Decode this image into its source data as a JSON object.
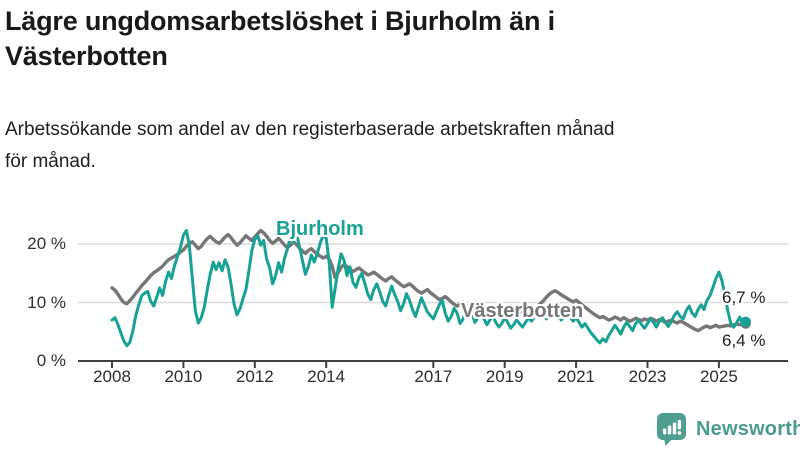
{
  "header": {
    "title_line1": "Lägre ungdomsarbetslöshet i Bjurholm än i",
    "title_line2": "Västerbotten",
    "subtitle_line1": "Arbetssökande som andel av den registerbaserade arbetskraften månad",
    "subtitle_line2": "för månad."
  },
  "chart_data": {
    "type": "line",
    "title": "Lägre ungdomsarbetslöshet i Bjurholm än i Västerbotten",
    "subtitle": "Arbetssökande som andel av den registerbaserade arbetskraften månad för månad.",
    "x_unit": "month",
    "x_start": "2008-01",
    "x_end": "2025-10",
    "ylim": [
      0,
      25
    ],
    "grid": "horizontal",
    "y_ticks": [
      {
        "label": "20 %",
        "value": 20
      },
      {
        "label": "10 %",
        "value": 10
      },
      {
        "label": "0 %",
        "value": 0
      }
    ],
    "x_ticks": [
      {
        "label": "2008",
        "year": 2008
      },
      {
        "label": "2010",
        "year": 2010
      },
      {
        "label": "2012",
        "year": 2012
      },
      {
        "label": "2014",
        "year": 2014
      },
      {
        "label": "2017",
        "year": 2017
      },
      {
        "label": "2019",
        "year": 2019
      },
      {
        "label": "2021",
        "year": 2021
      },
      {
        "label": "2023",
        "year": 2023
      },
      {
        "label": "2025",
        "year": 2025
      }
    ],
    "series": [
      {
        "name": "Bjurholm",
        "color": "#17A295",
        "latest_value_label": "6,7 %",
        "values": [
          7.0,
          7.4,
          6.2,
          4.8,
          3.4,
          2.6,
          3.2,
          5.1,
          7.8,
          9.6,
          11.2,
          11.6,
          11.9,
          10.2,
          9.4,
          10.8,
          12.5,
          11.2,
          13.6,
          15.2,
          14.1,
          16.3,
          17.8,
          19.4,
          21.5,
          22.3,
          19.8,
          14.2,
          8.6,
          6.5,
          7.4,
          9.2,
          12.1,
          14.8,
          16.9,
          15.6,
          16.8,
          15.4,
          17.3,
          16.1,
          13.2,
          9.8,
          7.9,
          8.9,
          10.6,
          12.2,
          15.4,
          18.8,
          20.8,
          21.4,
          19.8,
          20.6,
          17.4,
          15.9,
          13.2,
          14.6,
          16.8,
          15.2,
          17.6,
          19.2,
          21.2,
          20.4,
          21.8,
          19.6,
          17.2,
          14.8,
          16.2,
          18.1,
          16.9,
          18.4,
          20.2,
          21.5,
          21.0,
          16.8,
          9.2,
          12.4,
          15.8,
          18.3,
          17.2,
          14.6,
          16.1,
          13.4,
          12.6,
          14.2,
          15.0,
          13.2,
          11.4,
          10.5,
          12.2,
          13.2,
          11.8,
          10.2,
          9.4,
          11.2,
          12.8,
          11.4,
          10.2,
          8.6,
          9.8,
          11.5,
          10.4,
          8.8,
          7.6,
          9.2,
          10.8,
          9.6,
          8.4,
          7.8,
          7.2,
          8.4,
          9.6,
          10.4,
          8.2,
          6.8,
          7.6,
          9.0,
          8.2,
          6.4,
          7.2,
          8.8,
          9.2,
          8.0,
          6.6,
          7.4,
          8.6,
          7.2,
          6.2,
          7.0,
          7.8,
          6.6,
          5.8,
          6.4,
          7.4,
          6.6,
          5.6,
          6.2,
          7.0,
          6.4,
          5.8,
          6.6,
          7.4,
          6.8,
          7.6,
          8.2,
          8.8,
          8.0,
          7.2,
          8.4,
          9.2,
          8.6,
          7.8,
          7.0,
          7.6,
          8.2,
          7.4,
          6.8,
          7.4,
          6.6,
          5.8,
          6.4,
          5.6,
          4.8,
          4.2,
          3.6,
          3.1,
          3.8,
          3.3,
          4.4,
          5.2,
          6.1,
          5.4,
          4.6,
          5.8,
          6.6,
          5.9,
          5.2,
          6.4,
          7.0,
          6.2,
          5.6,
          6.4,
          7.2,
          6.6,
          5.8,
          6.8,
          7.4,
          6.6,
          5.9,
          6.7,
          7.8,
          8.4,
          7.6,
          7.2,
          8.6,
          9.4,
          8.2,
          7.6,
          8.8,
          9.6,
          8.8,
          10.4,
          11.2,
          12.6,
          14.1,
          15.2,
          13.8,
          11.2,
          8.6,
          6.4,
          5.8,
          6.6,
          7.5,
          6.2,
          6.7
        ]
      },
      {
        "name": "Västerbotten",
        "color": "#767676",
        "latest_value_label": "6,4 %",
        "values": [
          12.5,
          12.1,
          11.4,
          10.6,
          10.0,
          9.8,
          10.3,
          10.9,
          11.6,
          12.2,
          12.9,
          13.4,
          14.0,
          14.6,
          15.1,
          15.4,
          15.8,
          16.2,
          16.8,
          17.3,
          17.6,
          17.9,
          18.2,
          18.6,
          19.0,
          19.6,
          20.1,
          20.4,
          19.8,
          19.2,
          19.6,
          20.3,
          20.9,
          21.3,
          20.8,
          20.4,
          20.1,
          20.6,
          21.2,
          21.6,
          21.1,
          20.4,
          19.8,
          20.2,
          20.8,
          21.4,
          21.0,
          20.6,
          21.2,
          21.8,
          22.3,
          21.9,
          21.3,
          20.6,
          20.1,
          20.5,
          21.0,
          20.4,
          19.8,
          19.4,
          19.8,
          20.3,
          19.9,
          19.3,
          18.8,
          18.4,
          18.9,
          19.2,
          18.7,
          18.3,
          17.9,
          17.6,
          17.9,
          17.4,
          16.2,
          14.3,
          15.1,
          16.0,
          16.5,
          16.1,
          15.7,
          15.3,
          15.6,
          15.9,
          15.5,
          15.1,
          14.7,
          14.9,
          15.2,
          14.8,
          14.4,
          14.0,
          13.7,
          14.1,
          14.4,
          13.9,
          13.5,
          13.1,
          12.7,
          12.9,
          13.2,
          12.8,
          12.3,
          11.9,
          11.6,
          11.9,
          12.2,
          11.7,
          11.3,
          10.9,
          10.5,
          10.7,
          11.0,
          10.6,
          10.1,
          9.7,
          9.4,
          9.7,
          10.0,
          9.5,
          9.2,
          8.9,
          8.6,
          8.8,
          9.1,
          8.7,
          8.3,
          8.0,
          8.2,
          8.5,
          8.2,
          7.9,
          8.1,
          8.4,
          8.2,
          8.0,
          8.3,
          8.6,
          8.4,
          8.7,
          9.0,
          8.8,
          9.1,
          9.4,
          9.8,
          10.3,
          10.9,
          11.4,
          11.8,
          12.0,
          11.7,
          11.3,
          11.0,
          10.7,
          10.4,
          10.1,
          10.4,
          10.0,
          9.6,
          9.2,
          8.8,
          8.4,
          8.0,
          7.7,
          7.4,
          7.6,
          7.3,
          7.0,
          7.2,
          7.5,
          7.3,
          7.0,
          7.4,
          7.1,
          6.8,
          7.0,
          7.3,
          7.1,
          6.9,
          7.2,
          7.0,
          7.3,
          7.1,
          6.8,
          7.1,
          6.9,
          6.6,
          6.8,
          7.0,
          6.7,
          6.5,
          6.8,
          6.6,
          6.3,
          6.0,
          5.7,
          5.4,
          5.2,
          5.5,
          5.8,
          6.0,
          5.7,
          5.9,
          6.1,
          5.8,
          5.9,
          6.0,
          6.1,
          6.0,
          6.2,
          6.3,
          6.2,
          6.3,
          6.4
        ]
      }
    ],
    "end_labels": [
      "6,7 %",
      "6,4 %"
    ],
    "colors": {
      "grid": "#dcdcdc",
      "axis": "#3f3f3f",
      "bjurholm": "#17A295",
      "vasterbotten": "#767676"
    },
    "legend_position": "inline-labels"
  },
  "footer": {
    "brand": "Newsworthy",
    "brand_color": "#4A9B8D",
    "icon": "newsworthy-chart-bubble-icon"
  }
}
